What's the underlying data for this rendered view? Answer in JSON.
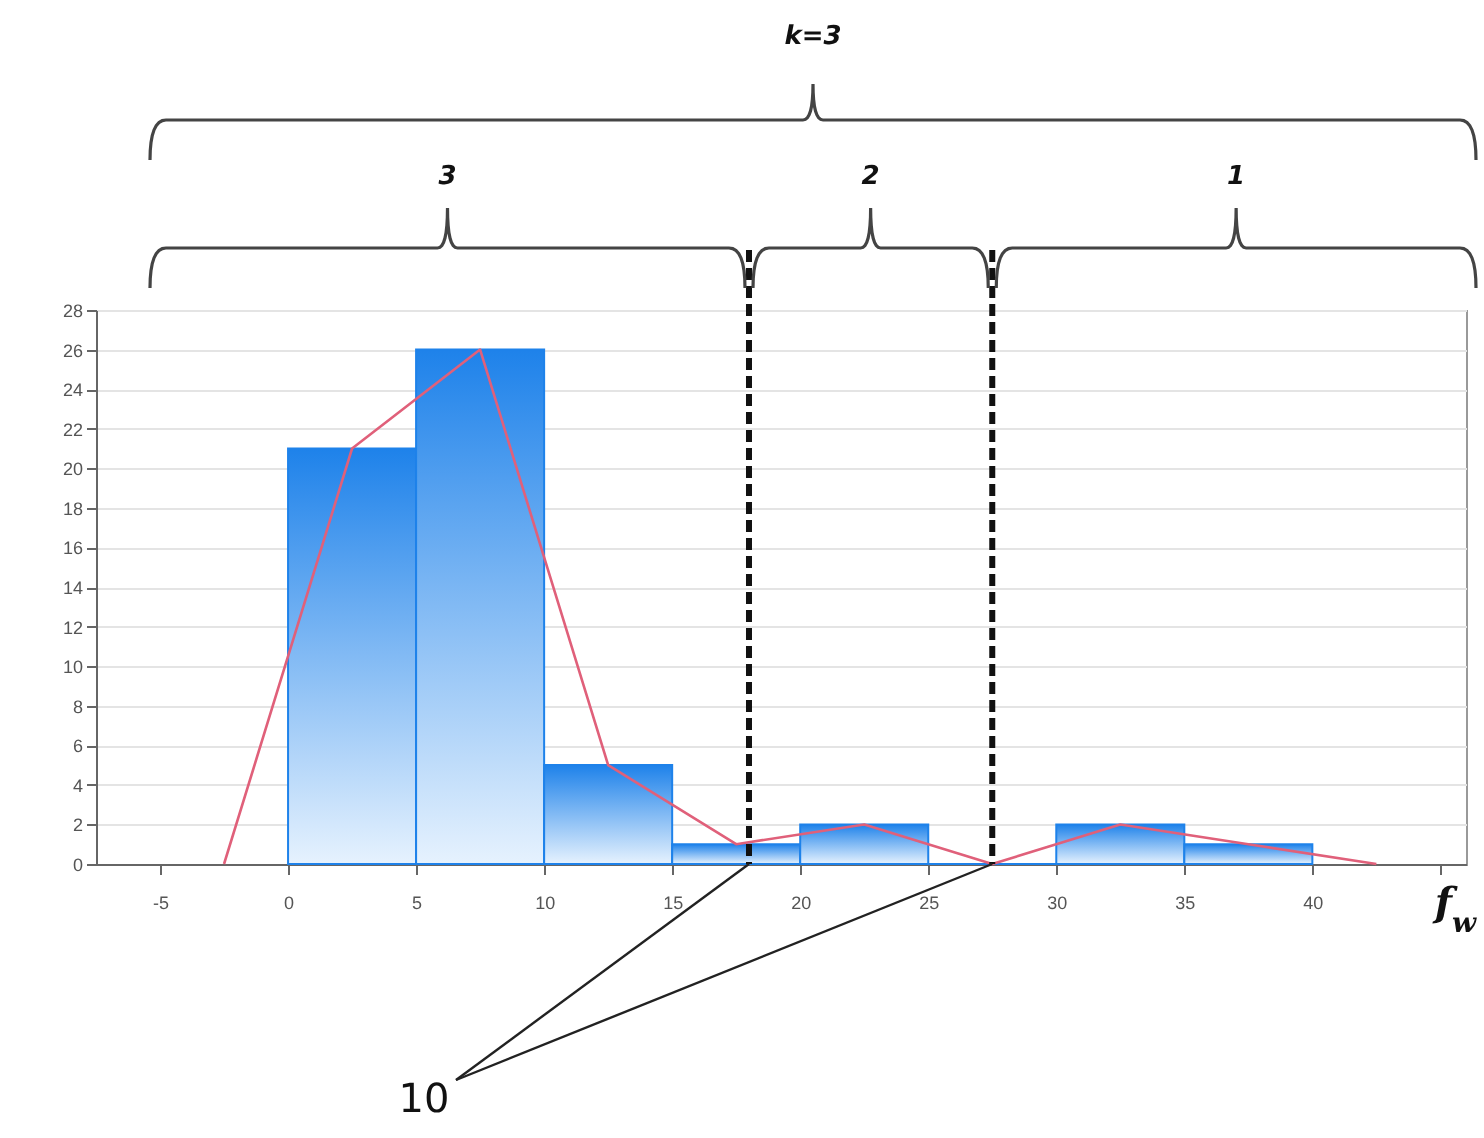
{
  "chart_data": {
    "type": "histogram",
    "bins": [
      0,
      5,
      10,
      15,
      20,
      25,
      30,
      35,
      40
    ],
    "values": [
      21,
      26,
      5,
      1,
      2,
      0,
      2,
      1
    ],
    "color": "#1e82ea",
    "series": [
      {
        "type": "line",
        "x": [
          -2.5,
          2.5,
          7.5,
          12.5,
          17.5,
          22.5,
          27.5,
          32.5,
          37.5,
          42.5
        ],
        "values": [
          0,
          21,
          26,
          5,
          1,
          2,
          0,
          2,
          1,
          0
        ],
        "color": "#e0607a"
      }
    ],
    "xlabel": "f$_{w}$",
    "xlim": [
      -7.5,
      46
    ],
    "xticks": [
      -5,
      0,
      5,
      10,
      15,
      20,
      25,
      30,
      35,
      40,
      {
        "value": 45,
        "label": null
      }
    ],
    "ylim": [
      0,
      28
    ],
    "yticks": [
      0,
      2,
      4,
      6,
      8,
      10,
      12,
      14,
      16,
      18,
      20,
      22,
      24,
      26,
      28
    ],
    "grid": "y",
    "marker": "none",
    "ref_lines": [
      {
        "axis": "x",
        "value": 18,
        "color": "#111111",
        "line_style": "dashed"
      },
      {
        "axis": "x",
        "value": 27.5,
        "color": "#111111",
        "line_style": "dashed"
      }
    ],
    "annotations": [
      "k=3",
      "3",
      "2",
      "1",
      {
        "text": "10",
        "x": 18,
        "y": 0
      }
    ]
  }
}
